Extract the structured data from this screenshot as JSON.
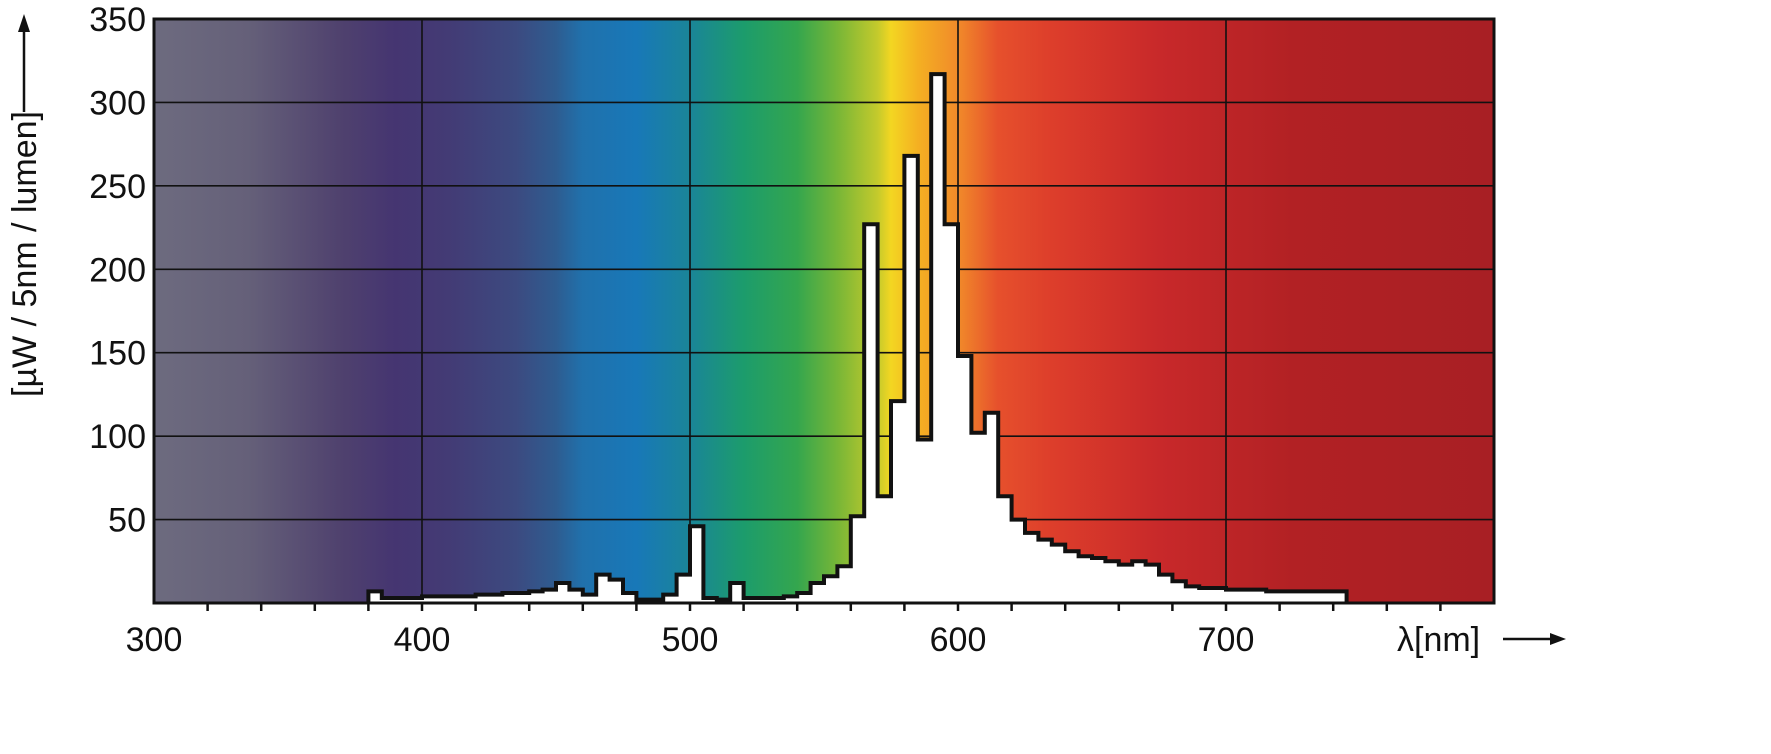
{
  "chart_data": {
    "type": "bar",
    "subtype": "step-spectrum",
    "title": "",
    "xlabel": "λ[nm]",
    "ylabel": "[µW / 5nm / lumen]",
    "xlim": [
      300,
      800
    ],
    "ylim": [
      0,
      350
    ],
    "x_ticks": [
      "300",
      "400",
      "500",
      "600",
      "700"
    ],
    "y_ticks": [
      "50",
      "100",
      "150",
      "200",
      "250",
      "300",
      "350"
    ],
    "grid": true,
    "background": "visible-spectrum gradient",
    "fill_color": "#ffffff",
    "line_color": "#111111",
    "bin_width_nm": 5,
    "series": [
      {
        "x": [
          380,
          385,
          390,
          395,
          400,
          405,
          410,
          415,
          420,
          425,
          430,
          435,
          440,
          445,
          450,
          455,
          460,
          465,
          470,
          475,
          480,
          485,
          490,
          495,
          500,
          505,
          510,
          515,
          520,
          525,
          530,
          535,
          540,
          545,
          550,
          555,
          560,
          565,
          570,
          575,
          580,
          585,
          590,
          595,
          600,
          605,
          610,
          615,
          620,
          625,
          630,
          635,
          640,
          645,
          650,
          655,
          660,
          665,
          670,
          675,
          680,
          685,
          690,
          695,
          700,
          705,
          710,
          715,
          720,
          725,
          730,
          735,
          740
        ],
        "values": [
          7,
          3,
          3,
          3,
          4,
          4,
          4,
          4,
          5,
          5,
          6,
          6,
          7,
          8,
          12,
          8,
          5,
          17,
          14,
          6,
          2,
          2,
          5,
          17,
          46,
          3,
          2,
          12,
          3,
          3,
          3,
          4,
          6,
          12,
          16,
          22,
          52,
          227,
          64,
          121,
          268,
          98,
          317,
          227,
          148,
          102,
          114,
          64,
          50,
          42,
          38,
          35,
          31,
          28,
          27,
          25,
          23,
          25,
          23,
          17,
          13,
          10,
          9,
          9,
          8,
          8,
          8,
          7,
          7,
          7,
          7,
          7,
          7
        ]
      }
    ]
  }
}
